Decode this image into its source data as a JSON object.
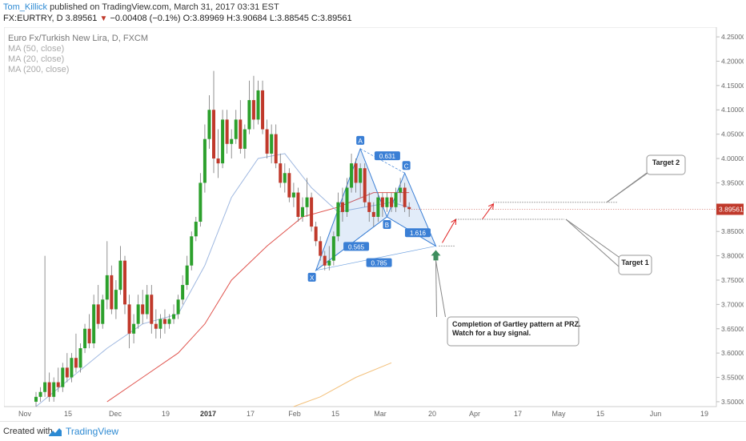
{
  "header": {
    "author": "Tom_Killick",
    "published": " published on TradingView.com, March 31, 2017 03:31 EST",
    "symbol": "FX:EURTRY, D",
    "last": "3.89561",
    "down_arrow": "▼",
    "change": "−0.00408 (−0.1%)",
    "open_label": "O:",
    "open": "3.89969",
    "high_label": "H:",
    "high": "3.90684",
    "low_label": "L:",
    "low": "3.88545",
    "close_label": "C:",
    "close": "3.89561"
  },
  "legend": {
    "title": "Euro Fx/Turkish New Lira, D, FXCM",
    "ma50": "MA (50, close)",
    "ma20": "MA (20, close)",
    "ma200": "MA (200, close)"
  },
  "footer": {
    "created_with": "Created with",
    "brand": "TradingView"
  },
  "colors": {
    "up": "#2ca02c",
    "down": "#c0392b",
    "pattern": "#3a7fd5",
    "ma20": "#9fb8e0",
    "ma50": "#e0554f",
    "ma200": "#f3c07a",
    "price_tag": "#c0392b",
    "arrow": "#e02020",
    "buy_arrow": "#3e8e5e"
  },
  "chart_data": {
    "type": "candlestick",
    "x_ticks": [
      "Nov",
      "15",
      "Dec",
      "19",
      "2017",
      "17",
      "Feb",
      "15",
      "Mar",
      "20",
      "Apr",
      "17",
      "May",
      "15",
      "Jun",
      "19"
    ],
    "y_ticks": [
      "4.25000",
      "4.20000",
      "4.15000",
      "4.10000",
      "4.05000",
      "4.00000",
      "3.95000",
      "3.90000",
      "3.85000",
      "3.80000",
      "3.75000",
      "3.70000",
      "3.65000",
      "3.60000",
      "3.55000",
      "3.50000"
    ],
    "ylim": [
      3.49,
      4.26
    ],
    "last_price": "3.89561",
    "candles": [
      {
        "o": 3.5,
        "h": 3.52,
        "l": 3.49,
        "c": 3.51
      },
      {
        "o": 3.51,
        "h": 3.53,
        "l": 3.5,
        "c": 3.52
      },
      {
        "o": 3.52,
        "h": 3.8,
        "l": 3.51,
        "c": 3.54
      },
      {
        "o": 3.54,
        "h": 3.56,
        "l": 3.5,
        "c": 3.51
      },
      {
        "o": 3.51,
        "h": 3.55,
        "l": 3.5,
        "c": 3.54
      },
      {
        "o": 3.54,
        "h": 3.57,
        "l": 3.52,
        "c": 3.53
      },
      {
        "o": 3.53,
        "h": 3.58,
        "l": 3.52,
        "c": 3.57
      },
      {
        "o": 3.57,
        "h": 3.6,
        "l": 3.54,
        "c": 3.55
      },
      {
        "o": 3.55,
        "h": 3.6,
        "l": 3.54,
        "c": 3.59
      },
      {
        "o": 3.59,
        "h": 3.64,
        "l": 3.56,
        "c": 3.57
      },
      {
        "o": 3.57,
        "h": 3.62,
        "l": 3.56,
        "c": 3.61
      },
      {
        "o": 3.61,
        "h": 3.66,
        "l": 3.6,
        "c": 3.65
      },
      {
        "o": 3.65,
        "h": 3.68,
        "l": 3.61,
        "c": 3.62
      },
      {
        "o": 3.62,
        "h": 3.72,
        "l": 3.61,
        "c": 3.7
      },
      {
        "o": 3.7,
        "h": 3.74,
        "l": 3.65,
        "c": 3.66
      },
      {
        "o": 3.66,
        "h": 3.72,
        "l": 3.65,
        "c": 3.71
      },
      {
        "o": 3.71,
        "h": 3.83,
        "l": 3.69,
        "c": 3.76
      },
      {
        "o": 3.76,
        "h": 3.78,
        "l": 3.68,
        "c": 3.69
      },
      {
        "o": 3.69,
        "h": 3.75,
        "l": 3.67,
        "c": 3.73
      },
      {
        "o": 3.73,
        "h": 3.82,
        "l": 3.72,
        "c": 3.79
      },
      {
        "o": 3.79,
        "h": 3.8,
        "l": 3.68,
        "c": 3.7
      },
      {
        "o": 3.7,
        "h": 3.72,
        "l": 3.61,
        "c": 3.64
      },
      {
        "o": 3.64,
        "h": 3.68,
        "l": 3.62,
        "c": 3.66
      },
      {
        "o": 3.66,
        "h": 3.72,
        "l": 3.65,
        "c": 3.7
      },
      {
        "o": 3.7,
        "h": 3.73,
        "l": 3.66,
        "c": 3.68
      },
      {
        "o": 3.68,
        "h": 3.74,
        "l": 3.67,
        "c": 3.72
      },
      {
        "o": 3.72,
        "h": 3.74,
        "l": 3.64,
        "c": 3.66
      },
      {
        "o": 3.66,
        "h": 3.69,
        "l": 3.63,
        "c": 3.65
      },
      {
        "o": 3.65,
        "h": 3.68,
        "l": 3.63,
        "c": 3.67
      },
      {
        "o": 3.67,
        "h": 3.69,
        "l": 3.64,
        "c": 3.66
      },
      {
        "o": 3.66,
        "h": 3.68,
        "l": 3.65,
        "c": 3.67
      },
      {
        "o": 3.67,
        "h": 3.7,
        "l": 3.66,
        "c": 3.68
      },
      {
        "o": 3.68,
        "h": 3.72,
        "l": 3.67,
        "c": 3.71
      },
      {
        "o": 3.71,
        "h": 3.76,
        "l": 3.7,
        "c": 3.74
      },
      {
        "o": 3.74,
        "h": 3.8,
        "l": 3.73,
        "c": 3.78
      },
      {
        "o": 3.78,
        "h": 3.85,
        "l": 3.77,
        "c": 3.84
      },
      {
        "o": 3.84,
        "h": 3.88,
        "l": 3.83,
        "c": 3.87
      },
      {
        "o": 3.87,
        "h": 3.97,
        "l": 3.86,
        "c": 3.95
      },
      {
        "o": 3.95,
        "h": 4.07,
        "l": 3.93,
        "c": 4.04
      },
      {
        "o": 4.04,
        "h": 4.13,
        "l": 4.02,
        "c": 4.1
      },
      {
        "o": 4.1,
        "h": 4.18,
        "l": 3.97,
        "c": 4.0
      },
      {
        "o": 4.0,
        "h": 4.06,
        "l": 3.96,
        "c": 3.99
      },
      {
        "o": 3.99,
        "h": 4.1,
        "l": 3.98,
        "c": 4.08
      },
      {
        "o": 4.08,
        "h": 4.1,
        "l": 4.01,
        "c": 4.03
      },
      {
        "o": 4.03,
        "h": 4.06,
        "l": 4.0,
        "c": 4.04
      },
      {
        "o": 4.04,
        "h": 4.1,
        "l": 4.03,
        "c": 4.08
      },
      {
        "o": 4.08,
        "h": 4.12,
        "l": 4.01,
        "c": 4.02
      },
      {
        "o": 4.02,
        "h": 4.07,
        "l": 4.0,
        "c": 4.06
      },
      {
        "o": 4.06,
        "h": 4.16,
        "l": 4.05,
        "c": 4.12
      },
      {
        "o": 4.12,
        "h": 4.17,
        "l": 4.06,
        "c": 4.08
      },
      {
        "o": 4.08,
        "h": 4.16,
        "l": 4.07,
        "c": 4.14
      },
      {
        "o": 4.14,
        "h": 4.16,
        "l": 4.05,
        "c": 4.06
      },
      {
        "o": 4.06,
        "h": 4.08,
        "l": 4.0,
        "c": 4.01
      },
      {
        "o": 4.01,
        "h": 4.07,
        "l": 3.99,
        "c": 4.05
      },
      {
        "o": 4.05,
        "h": 4.07,
        "l": 3.98,
        "c": 3.99
      },
      {
        "o": 3.99,
        "h": 4.01,
        "l": 3.94,
        "c": 3.95
      },
      {
        "o": 3.95,
        "h": 3.99,
        "l": 3.93,
        "c": 3.97
      },
      {
        "o": 3.97,
        "h": 3.98,
        "l": 3.91,
        "c": 3.92
      },
      {
        "o": 3.92,
        "h": 3.95,
        "l": 3.9,
        "c": 3.93
      },
      {
        "o": 3.93,
        "h": 3.94,
        "l": 3.87,
        "c": 3.88
      },
      {
        "o": 3.88,
        "h": 3.92,
        "l": 3.87,
        "c": 3.9
      },
      {
        "o": 3.9,
        "h": 3.96,
        "l": 3.88,
        "c": 3.92
      },
      {
        "o": 3.92,
        "h": 3.93,
        "l": 3.85,
        "c": 3.86
      },
      {
        "o": 3.86,
        "h": 3.87,
        "l": 3.82,
        "c": 3.83
      },
      {
        "o": 3.83,
        "h": 3.84,
        "l": 3.79,
        "c": 3.8
      },
      {
        "o": 3.8,
        "h": 3.81,
        "l": 3.77,
        "c": 3.78
      },
      {
        "o": 3.78,
        "h": 3.82,
        "l": 3.77,
        "c": 3.79
      },
      {
        "o": 3.79,
        "h": 3.85,
        "l": 3.78,
        "c": 3.84
      },
      {
        "o": 3.84,
        "h": 3.93,
        "l": 3.83,
        "c": 3.91
      },
      {
        "o": 3.91,
        "h": 3.94,
        "l": 3.87,
        "c": 3.89
      },
      {
        "o": 3.89,
        "h": 3.96,
        "l": 3.88,
        "c": 3.94
      },
      {
        "o": 3.94,
        "h": 4.01,
        "l": 3.93,
        "c": 3.99
      },
      {
        "o": 3.99,
        "h": 4.0,
        "l": 3.93,
        "c": 3.95
      },
      {
        "o": 3.95,
        "h": 3.99,
        "l": 3.92,
        "c": 3.98
      },
      {
        "o": 3.98,
        "h": 3.99,
        "l": 3.9,
        "c": 3.91
      },
      {
        "o": 3.91,
        "h": 3.93,
        "l": 3.87,
        "c": 3.89
      },
      {
        "o": 3.89,
        "h": 3.91,
        "l": 3.86,
        "c": 3.88
      },
      {
        "o": 3.88,
        "h": 3.93,
        "l": 3.87,
        "c": 3.92
      },
      {
        "o": 3.92,
        "h": 3.93,
        "l": 3.88,
        "c": 3.9
      },
      {
        "o": 3.9,
        "h": 3.93,
        "l": 3.89,
        "c": 3.92
      },
      {
        "o": 3.92,
        "h": 3.93,
        "l": 3.89,
        "c": 3.9
      },
      {
        "o": 3.9,
        "h": 3.94,
        "l": 3.89,
        "c": 3.93
      },
      {
        "o": 3.93,
        "h": 3.96,
        "l": 3.91,
        "c": 3.94
      },
      {
        "o": 3.94,
        "h": 3.95,
        "l": 3.89,
        "c": 3.9
      },
      {
        "o": 3.9,
        "h": 3.91,
        "l": 3.88,
        "c": 3.896
      }
    ],
    "ma20": [
      [
        0,
        3.49
      ],
      [
        8,
        3.55
      ],
      [
        16,
        3.61
      ],
      [
        24,
        3.66
      ],
      [
        32,
        3.68
      ],
      [
        38,
        3.78
      ],
      [
        44,
        3.92
      ],
      [
        50,
        4.0
      ],
      [
        56,
        4.01
      ],
      [
        62,
        3.94
      ],
      [
        68,
        3.89
      ],
      [
        74,
        3.9
      ],
      [
        80,
        3.91
      ],
      [
        84,
        3.9
      ]
    ],
    "ma50": [
      [
        16,
        3.5
      ],
      [
        24,
        3.55
      ],
      [
        32,
        3.6
      ],
      [
        38,
        3.66
      ],
      [
        44,
        3.75
      ],
      [
        52,
        3.82
      ],
      [
        60,
        3.88
      ],
      [
        68,
        3.9
      ],
      [
        76,
        3.93
      ],
      [
        84,
        3.93
      ]
    ],
    "ma200": [
      [
        58,
        3.49
      ],
      [
        64,
        3.51
      ],
      [
        72,
        3.55
      ],
      [
        80,
        3.58
      ]
    ],
    "pattern": {
      "points": [
        {
          "label": "X",
          "i": 63,
          "y": 3.77
        },
        {
          "label": "A",
          "i": 73,
          "y": 4.02
        },
        {
          "label": "B",
          "i": 79,
          "y": 3.88
        },
        {
          "label": "C",
          "i": 83,
          "y": 3.97
        },
        {
          "label": "D",
          "i": 90,
          "y": 3.82
        }
      ],
      "ratios": [
        "0.631",
        "0.565",
        "1.616",
        "0.785"
      ]
    },
    "annotations": {
      "target1": "Target 1",
      "target2": "Target 2",
      "note_line1": "Completion of Gartley pattern at PRZ.",
      "note_line2": "Watch for a buy signal.",
      "target1_price": 3.875,
      "target2_price": 3.91,
      "prz_price": 3.82
    }
  }
}
